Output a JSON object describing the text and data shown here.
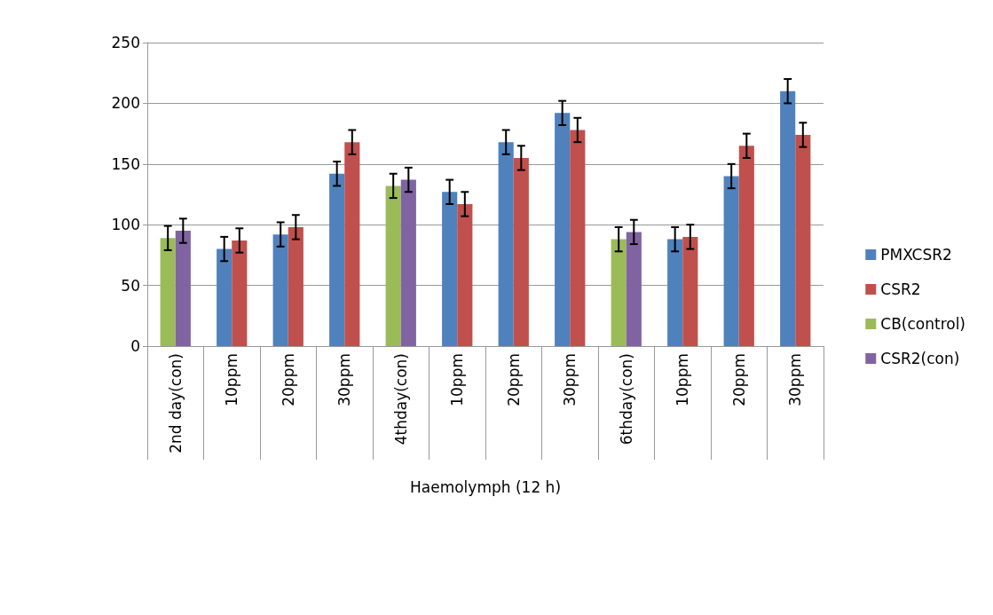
{
  "chart_data": {
    "type": "bar",
    "xlabel": "Haemolymph (12 h)",
    "categories": [
      "2nd day(con)",
      "10ppm",
      "20ppm",
      "30ppm",
      "4thday(con)",
      "10ppm",
      "20ppm",
      "30ppm",
      "6thday(con)",
      "10ppm",
      "20ppm",
      "30ppm"
    ],
    "series": [
      {
        "name": "PMXCSR2",
        "color": "#4f81bd",
        "values": [
          null,
          80,
          92,
          142,
          null,
          127,
          168,
          192,
          null,
          88,
          140,
          210
        ],
        "errors": [
          null,
          10,
          10,
          10,
          null,
          10,
          10,
          10,
          null,
          10,
          10,
          10
        ]
      },
      {
        "name": "CSR2",
        "color": "#c0504d",
        "values": [
          null,
          87,
          98,
          168,
          null,
          117,
          155,
          178,
          null,
          90,
          165,
          174
        ],
        "errors": [
          null,
          10,
          10,
          10,
          null,
          10,
          10,
          10,
          null,
          10,
          10,
          10
        ]
      },
      {
        "name": "CB(control)",
        "color": "#9bbb59",
        "values": [
          89,
          null,
          null,
          null,
          132,
          null,
          null,
          null,
          88,
          null,
          null,
          null
        ],
        "errors": [
          10,
          null,
          null,
          null,
          10,
          null,
          null,
          null,
          10,
          null,
          null,
          null
        ]
      },
      {
        "name": "CSR2(con)",
        "color": "#8064a2",
        "values": [
          95,
          null,
          null,
          null,
          137,
          null,
          null,
          null,
          94,
          null,
          null,
          null
        ],
        "errors": [
          10,
          null,
          null,
          null,
          10,
          null,
          null,
          null,
          10,
          null,
          null,
          null
        ]
      }
    ],
    "ylim": [
      0,
      250
    ],
    "yticks": [
      0,
      50,
      100,
      150,
      200,
      250
    ],
    "grid": "y",
    "legend": "right"
  }
}
